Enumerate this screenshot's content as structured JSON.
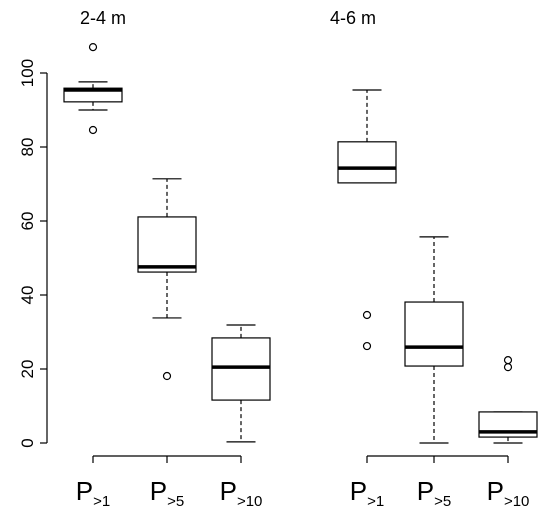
{
  "chart_data": {
    "type": "box",
    "ylim": [
      0,
      100
    ],
    "yticks": [
      0,
      20,
      40,
      60,
      80,
      100
    ],
    "groups": [
      {
        "title": "2-4 m",
        "boxes": [
          {
            "label": {
              "main": "P",
              "sub": ">1"
            },
            "whisker_low": 90,
            "q1": 92.2,
            "median": 95.4,
            "q3": 95.9,
            "whisker_high": 97.6,
            "outliers": [
              107,
              84.6
            ]
          },
          {
            "label": {
              "main": "P",
              "sub": ">5"
            },
            "whisker_low": 33.8,
            "q1": 46.2,
            "median": 47.6,
            "q3": 61.1,
            "whisker_high": 71.4,
            "outliers": [
              18.1
            ]
          },
          {
            "label": {
              "main": "P",
              "sub": ">10"
            },
            "whisker_low": 0.3,
            "q1": 11.6,
            "median": 20.5,
            "q3": 28.4,
            "whisker_high": 31.9,
            "outliers": []
          }
        ]
      },
      {
        "title": "4-6 m",
        "boxes": [
          {
            "label": {
              "main": "P",
              "sub": ">1"
            },
            "whisker_low": 70.3,
            "q1": 70.3,
            "median": 74.3,
            "q3": 81.4,
            "whisker_high": 95.4,
            "outliers": [
              34.6,
              26.2
            ]
          },
          {
            "label": {
              "main": "P",
              "sub": ">5"
            },
            "whisker_low": 0,
            "q1": 20.8,
            "median": 25.9,
            "q3": 38.1,
            "whisker_high": 55.7,
            "outliers": []
          },
          {
            "label": {
              "main": "P",
              "sub": ">10"
            },
            "whisker_low": 0,
            "q1": 1.6,
            "median": 3,
            "q3": 8.4,
            "whisker_high": 8.4,
            "outliers": [
              22.4,
              20.5
            ]
          }
        ]
      }
    ]
  }
}
